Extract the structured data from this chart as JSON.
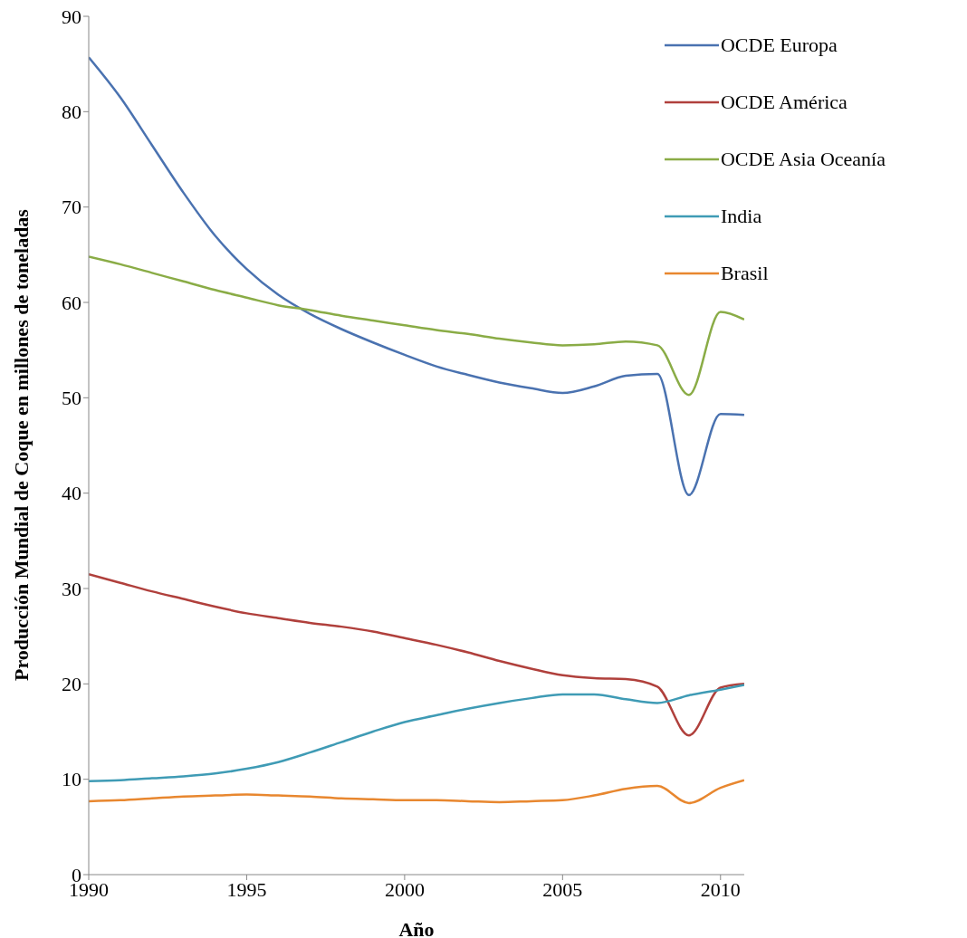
{
  "chart_data": {
    "type": "line",
    "xlabel": "Año",
    "ylabel": "Producción Mundial de Coque en millones de toneladas",
    "x": [
      1990,
      1991,
      1992,
      1993,
      1994,
      1995,
      1996,
      1997,
      1998,
      1999,
      2000,
      2001,
      2002,
      2003,
      2004,
      2005,
      2006,
      2007,
      2008,
      2009,
      2010,
      2010.75
    ],
    "xlim": [
      1990,
      2010.75
    ],
    "xticks": [
      1990,
      1995,
      2000,
      2005,
      2010
    ],
    "ylim": [
      0,
      90
    ],
    "yticks": [
      0,
      10,
      20,
      30,
      40,
      50,
      60,
      70,
      80,
      90
    ],
    "grid": false,
    "legend": "top right",
    "marker": "none",
    "line_style": "solid",
    "series": [
      {
        "name": "OCDE Europa",
        "color": "#4a72b0",
        "values": [
          85.7,
          81.5,
          76.5,
          71.5,
          67,
          63.5,
          60.8,
          58.8,
          57.2,
          55.8,
          54.5,
          53.3,
          52.4,
          51.6,
          51,
          50.5,
          51.2,
          52.3,
          52.5,
          39.8,
          48.3,
          48.2
        ]
      },
      {
        "name": "OCDE América",
        "color": "#b0403c",
        "values": [
          31.5,
          30.6,
          29.7,
          28.9,
          28.1,
          27.4,
          26.9,
          26.4,
          26,
          25.5,
          24.8,
          24.1,
          23.3,
          22.4,
          21.6,
          20.9,
          20.6,
          20.5,
          19.7,
          14.6,
          19.6,
          20
        ]
      },
      {
        "name": "OCDE Asia Oceanía",
        "color": "#8aac46",
        "values": [
          64.8,
          64,
          63.1,
          62.2,
          61.3,
          60.5,
          59.7,
          59.2,
          58.6,
          58.1,
          57.6,
          57.1,
          56.7,
          56.2,
          55.8,
          55.5,
          55.6,
          55.9,
          55.5,
          50.3,
          59,
          58.2
        ]
      },
      {
        "name": "India",
        "color": "#3f9bb5",
        "values": [
          9.8,
          9.9,
          10.1,
          10.3,
          10.6,
          11.1,
          11.8,
          12.8,
          13.9,
          15,
          16,
          16.7,
          17.4,
          18,
          18.5,
          18.9,
          18.9,
          18.4,
          18,
          18.8,
          19.4,
          19.9
        ]
      },
      {
        "name": "Brasil",
        "color": "#e8872f",
        "values": [
          7.7,
          7.8,
          8,
          8.2,
          8.3,
          8.4,
          8.3,
          8.2,
          8,
          7.9,
          7.8,
          7.8,
          7.7,
          7.6,
          7.7,
          7.8,
          8.3,
          9,
          9.3,
          7.5,
          9.1,
          9.9
        ]
      }
    ]
  }
}
